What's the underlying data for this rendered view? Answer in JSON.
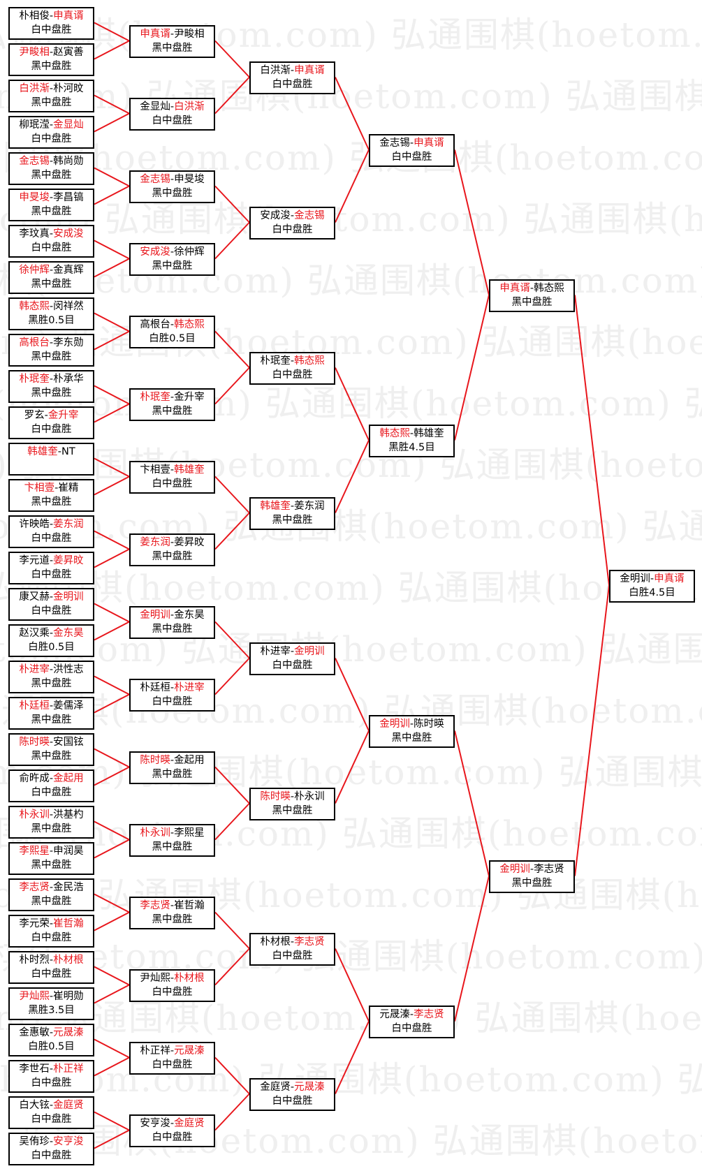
{
  "watermark": "弘通围棋(hoetom.com)",
  "colors": {
    "winner": "#e8161c",
    "text": "#000000",
    "line": "#e8161c",
    "border": "#000000"
  },
  "separator": "-",
  "rounds": [
    [
      {
        "p1": "朴相俊",
        "p2": "申真谞",
        "winner": 2,
        "result": "白中盘胜"
      },
      {
        "p1": "尹畯相",
        "p2": "赵寅善",
        "winner": 1,
        "result": "黑中盘胜"
      },
      {
        "p1": "白洪渐",
        "p2": "朴河旼",
        "winner": 1,
        "result": "黑中盘胜"
      },
      {
        "p1": "柳珉滢",
        "p2": "金显灿",
        "winner": 2,
        "result": "白中盘胜"
      },
      {
        "p1": "金志锡",
        "p2": "韩尚勋",
        "winner": 1,
        "result": "黑中盘胜"
      },
      {
        "p1": "申旻埈",
        "p2": "李昌镐",
        "winner": 1,
        "result": "黑中盘胜"
      },
      {
        "p1": "李玟真",
        "p2": "安成浚",
        "winner": 2,
        "result": "白中盘胜"
      },
      {
        "p1": "徐仲辉",
        "p2": "金真辉",
        "winner": 1,
        "result": "黑中盘胜"
      },
      {
        "p1": "韩态熙",
        "p2": "闵祥然",
        "winner": 1,
        "result": "黑胜0.5目"
      },
      {
        "p1": "高根台",
        "p2": "李东勋",
        "winner": 1,
        "result": "黑中盘胜"
      },
      {
        "p1": "朴珉奎",
        "p2": "朴承华",
        "winner": 1,
        "result": "黑中盘胜"
      },
      {
        "p1": "罗玄",
        "p2": "金升宰",
        "winner": 2,
        "result": "白中盘胜"
      },
      {
        "p1": "韩雄奎",
        "p2": "NT",
        "winner": 1,
        "result": ""
      },
      {
        "p1": "卞相壹",
        "p2": "崔精",
        "winner": 1,
        "result": "黑中盘胜"
      },
      {
        "p1": "许映皓",
        "p2": "姜东润",
        "winner": 2,
        "result": "白中盘胜"
      },
      {
        "p1": "李元道",
        "p2": "姜昇旼",
        "winner": 2,
        "result": "白中盘胜"
      },
      {
        "p1": "康又赫",
        "p2": "金明训",
        "winner": 2,
        "result": "白中盘胜"
      },
      {
        "p1": "赵汉乘",
        "p2": "金东昊",
        "winner": 2,
        "result": "白胜0.5目"
      },
      {
        "p1": "朴进宰",
        "p2": "洪性志",
        "winner": 1,
        "result": "黑中盘胜"
      },
      {
        "p1": "朴廷桓",
        "p2": "姜儒泽",
        "winner": 1,
        "result": "黑中盘胜"
      },
      {
        "p1": "陈时暎",
        "p2": "安国铉",
        "winner": 1,
        "result": "黑中盘胜"
      },
      {
        "p1": "俞旿成",
        "p2": "金起用",
        "winner": 2,
        "result": "白中盘胜"
      },
      {
        "p1": "朴永训",
        "p2": "洪基杓",
        "winner": 1,
        "result": "黑中盘胜"
      },
      {
        "p1": "李熙星",
        "p2": "申润昊",
        "winner": 1,
        "result": "黑中盘胜"
      },
      {
        "p1": "李志贤",
        "p2": "金民浩",
        "winner": 1,
        "result": "黑中盘胜"
      },
      {
        "p1": "李元荣",
        "p2": "崔哲瀚",
        "winner": 2,
        "result": "白中盘胜"
      },
      {
        "p1": "朴时烈",
        "p2": "朴材根",
        "winner": 2,
        "result": "白中盘胜"
      },
      {
        "p1": "尹灿熙",
        "p2": "崔明勋",
        "winner": 1,
        "result": "黑胜3.5目"
      },
      {
        "p1": "金惠敏",
        "p2": "元晟溱",
        "winner": 2,
        "result": "白胜0.5目"
      },
      {
        "p1": "李世石",
        "p2": "朴正祥",
        "winner": 2,
        "result": "白中盘胜"
      },
      {
        "p1": "白大铉",
        "p2": "金庭贤",
        "winner": 2,
        "result": "白中盘胜"
      },
      {
        "p1": "吴侑珍",
        "p2": "安亨浚",
        "winner": 2,
        "result": "白中盘胜"
      }
    ],
    [
      {
        "p1": "申真谞",
        "p2": "尹畯相",
        "winner": 1,
        "result": "黑中盘胜"
      },
      {
        "p1": "金显灿",
        "p2": "白洪渐",
        "winner": 2,
        "result": "白中盘胜"
      },
      {
        "p1": "金志锡",
        "p2": "申旻埈",
        "winner": 1,
        "result": "黑中盘胜"
      },
      {
        "p1": "安成浚",
        "p2": "徐仲辉",
        "winner": 1,
        "result": "黑中盘胜"
      },
      {
        "p1": "高根台",
        "p2": "韩态熙",
        "winner": 2,
        "result": "白胜0.5目"
      },
      {
        "p1": "朴珉奎",
        "p2": "金升宰",
        "winner": 1,
        "result": "黑中盘胜"
      },
      {
        "p1": "卞相壹",
        "p2": "韩雄奎",
        "winner": 2,
        "result": "白中盘胜"
      },
      {
        "p1": "姜东润",
        "p2": "姜昇旼",
        "winner": 1,
        "result": "黑中盘胜"
      },
      {
        "p1": "金明训",
        "p2": "金东昊",
        "winner": 1,
        "result": "黑中盘胜"
      },
      {
        "p1": "朴廷桓",
        "p2": "朴进宰",
        "winner": 2,
        "result": "白中盘胜"
      },
      {
        "p1": "陈时暎",
        "p2": "金起用",
        "winner": 1,
        "result": "黑中盘胜"
      },
      {
        "p1": "朴永训",
        "p2": "李熙星",
        "winner": 1,
        "result": "黑中盘胜"
      },
      {
        "p1": "李志贤",
        "p2": "崔哲瀚",
        "winner": 1,
        "result": "黑中盘胜"
      },
      {
        "p1": "尹灿熙",
        "p2": "朴材根",
        "winner": 2,
        "result": "白中盘胜"
      },
      {
        "p1": "朴正祥",
        "p2": "元晟溱",
        "winner": 2,
        "result": "白中盘胜"
      },
      {
        "p1": "安亨浚",
        "p2": "金庭贤",
        "winner": 2,
        "result": "白中盘胜"
      }
    ],
    [
      {
        "p1": "白洪渐",
        "p2": "申真谞",
        "winner": 2,
        "result": "白中盘胜"
      },
      {
        "p1": "安成浚",
        "p2": "金志锡",
        "winner": 2,
        "result": "白中盘胜"
      },
      {
        "p1": "朴珉奎",
        "p2": "韩态熙",
        "winner": 2,
        "result": "白中盘胜"
      },
      {
        "p1": "韩雄奎",
        "p2": "姜东润",
        "winner": 1,
        "result": "黑中盘胜"
      },
      {
        "p1": "朴进宰",
        "p2": "金明训",
        "winner": 2,
        "result": "白中盘胜"
      },
      {
        "p1": "陈时暎",
        "p2": "朴永训",
        "winner": 1,
        "result": "黑中盘胜"
      },
      {
        "p1": "朴材根",
        "p2": "李志贤",
        "winner": 2,
        "result": "白中盘胜"
      },
      {
        "p1": "金庭贤",
        "p2": "元晟溱",
        "winner": 2,
        "result": "白中盘胜"
      }
    ],
    [
      {
        "p1": "金志锡",
        "p2": "申真谞",
        "winner": 2,
        "result": "白中盘胜"
      },
      {
        "p1": "韩态熙",
        "p2": "韩雄奎",
        "winner": 1,
        "result": "黑胜4.5目"
      },
      {
        "p1": "金明训",
        "p2": "陈时暎",
        "winner": 1,
        "result": "黑中盘胜"
      },
      {
        "p1": "元晟溱",
        "p2": "李志贤",
        "winner": 2,
        "result": "白中盘胜"
      }
    ],
    [
      {
        "p1": "申真谞",
        "p2": "韩态熙",
        "winner": 1,
        "result": "黑中盘胜"
      },
      {
        "p1": "金明训",
        "p2": "李志贤",
        "winner": 1,
        "result": "黑中盘胜"
      }
    ],
    [
      {
        "p1": "金明训",
        "p2": "申真谞",
        "winner": 2,
        "result": "白胜4.5目"
      }
    ]
  ]
}
